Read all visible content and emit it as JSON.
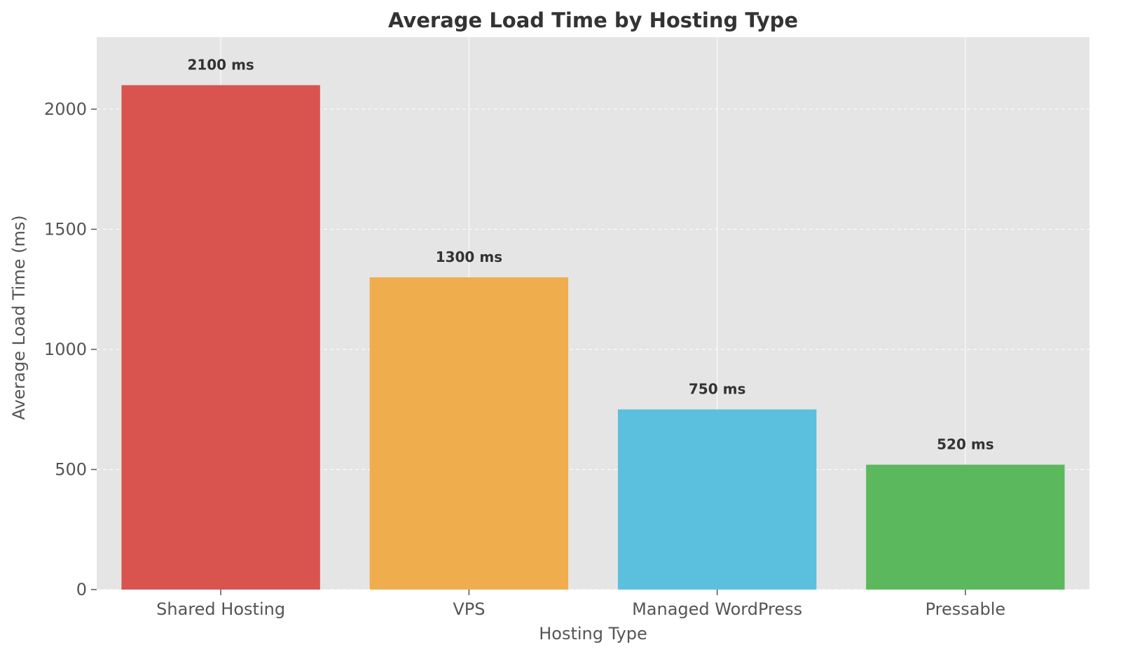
{
  "chart_data": {
    "type": "bar",
    "title": "Average Load Time by Hosting Type",
    "xlabel": "Hosting Type",
    "ylabel": "Average Load Time (ms)",
    "categories": [
      "Shared Hosting",
      "VPS",
      "Managed WordPress",
      "Pressable"
    ],
    "values": [
      2100,
      1300,
      750,
      520
    ],
    "data_labels": [
      "2100 ms",
      "1300 ms",
      "750 ms",
      "520 ms"
    ],
    "colors": [
      "#d9534f",
      "#f0ad4e",
      "#5bc0de",
      "#5cb85c"
    ],
    "yticks": [
      0,
      500,
      1000,
      1500,
      2000
    ],
    "ylim": [
      0,
      2300
    ],
    "grid": true,
    "background": "#e5e5e5"
  }
}
